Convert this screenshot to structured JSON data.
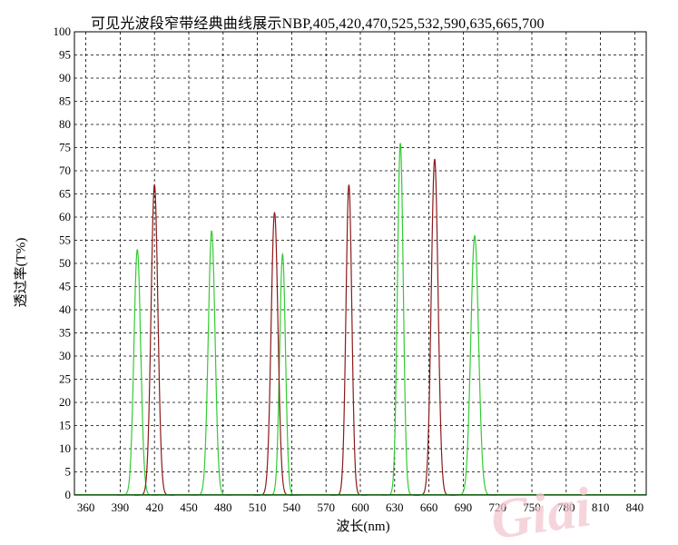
{
  "title": "可见光波段窄带经典曲线展示NBP,405,420,470,525,532,590,635,665,700",
  "chart_data": {
    "type": "line",
    "title": "可见光波段窄带经典曲线展示NBP,405,420,470,525,532,590,635,665,700",
    "xlabel": "波长(nm)",
    "ylabel": "透过率(T%)",
    "xlim": [
      350,
      850
    ],
    "ylim": [
      0,
      100
    ],
    "x_ticks": [
      360,
      390,
      420,
      450,
      480,
      510,
      540,
      570,
      600,
      630,
      660,
      690,
      720,
      750,
      780,
      810,
      840
    ],
    "y_ticks": [
      0,
      5,
      10,
      15,
      20,
      25,
      30,
      35,
      40,
      45,
      50,
      55,
      60,
      65,
      70,
      75,
      80,
      85,
      90,
      95,
      100
    ],
    "grid": true,
    "colors": {
      "green": "#33cc33",
      "red": "#8b1a1a"
    },
    "series": [
      {
        "color": "green",
        "peaks": [
          {
            "center": 405,
            "fwhm": 7,
            "peak": 53,
            "notch": 51.5
          },
          {
            "center": 470,
            "fwhm": 7,
            "peak": 57
          },
          {
            "center": 532,
            "fwhm": 6,
            "peak": 52
          },
          {
            "center": 635,
            "fwhm": 6,
            "peak": 76
          },
          {
            "center": 700,
            "fwhm": 8,
            "peak": 56
          }
        ]
      },
      {
        "color": "red",
        "peaks": [
          {
            "center": 420,
            "fwhm": 7,
            "peak": 67
          },
          {
            "center": 525,
            "fwhm": 7,
            "peak": 61
          },
          {
            "center": 590,
            "fwhm": 6,
            "peak": 67
          },
          {
            "center": 665,
            "fwhm": 7,
            "peak": 72.5
          }
        ]
      }
    ]
  },
  "watermark": "Giai"
}
